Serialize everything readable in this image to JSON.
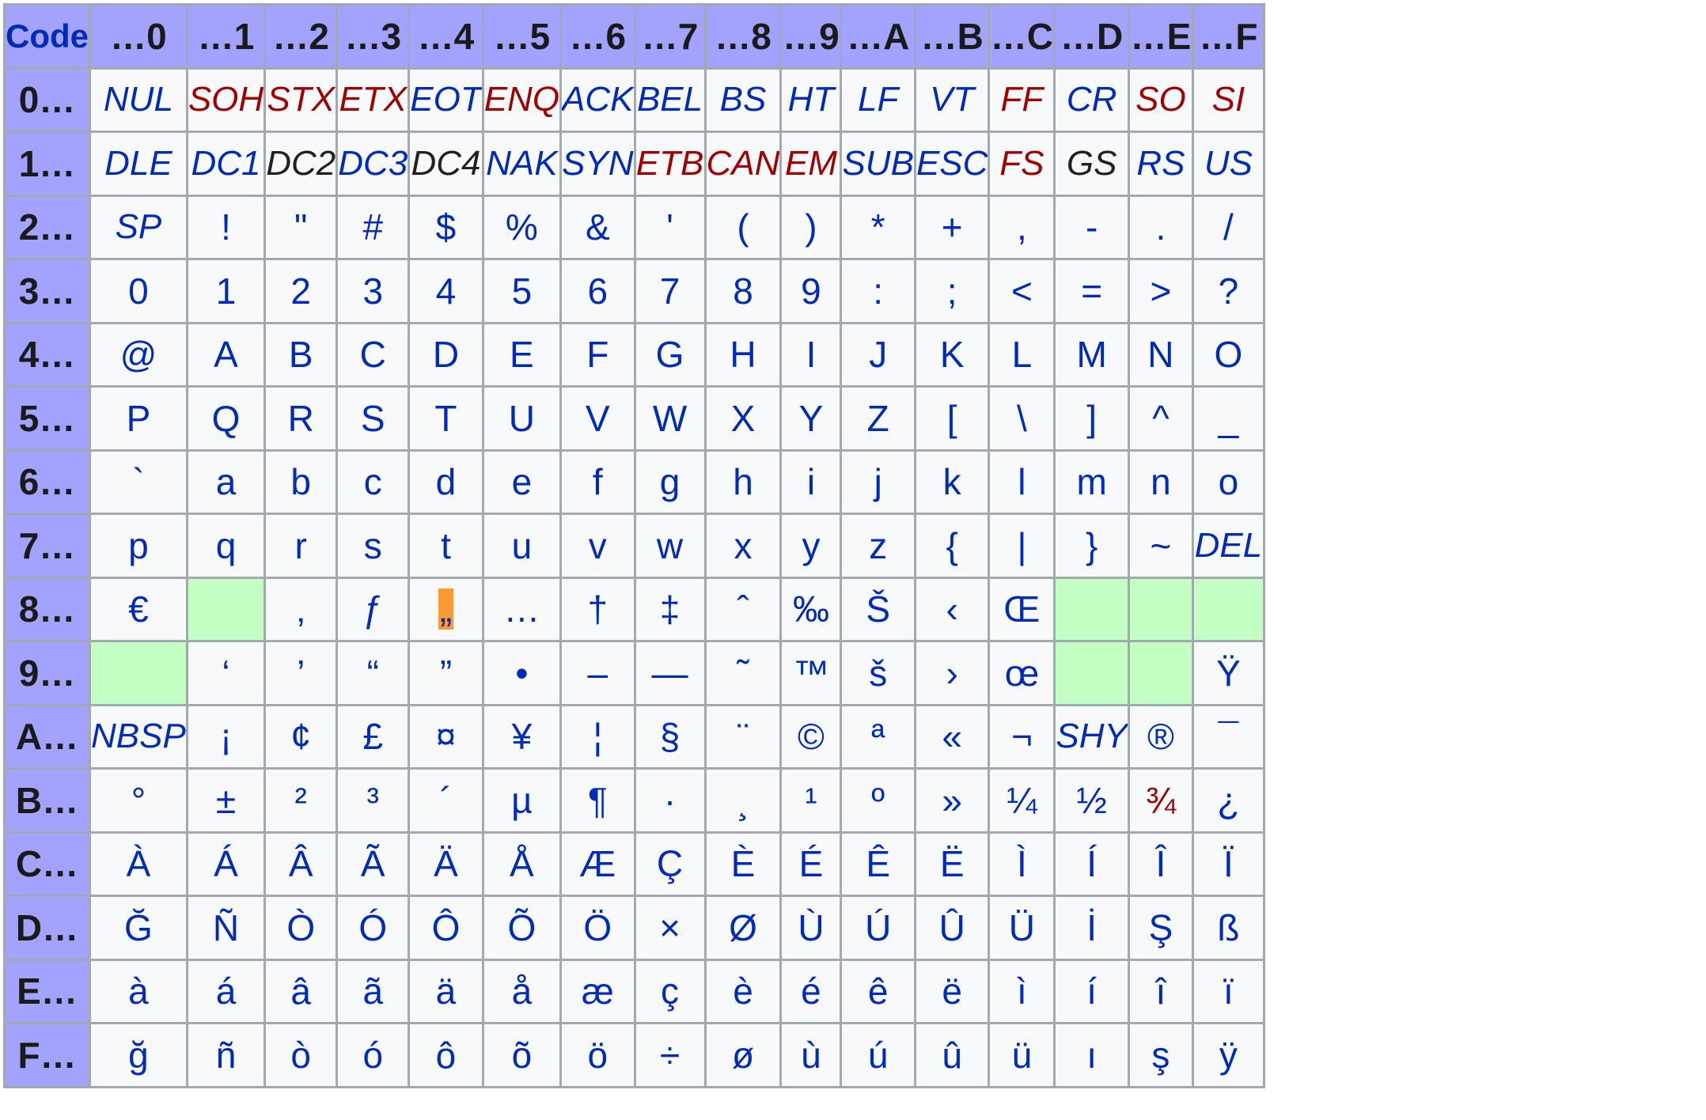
{
  "table": {
    "corner": "Code",
    "columns": [
      "…0",
      "…1",
      "…2",
      "…3",
      "…4",
      "…5",
      "…6",
      "…7",
      "…8",
      "…9",
      "…A",
      "…B",
      "…C",
      "…D",
      "…E",
      "…F"
    ],
    "rows": [
      {
        "label": "0…",
        "cells": [
          {
            "t": "NUL",
            "k": "blue",
            "ctrl": true
          },
          {
            "t": "SOH",
            "k": "red",
            "ctrl": true
          },
          {
            "t": "STX",
            "k": "red",
            "ctrl": true
          },
          {
            "t": "ETX",
            "k": "red",
            "ctrl": true
          },
          {
            "t": "EOT",
            "k": "blue",
            "ctrl": true
          },
          {
            "t": "ENQ",
            "k": "red",
            "ctrl": true
          },
          {
            "t": "ACK",
            "k": "blue",
            "ctrl": true
          },
          {
            "t": "BEL",
            "k": "blue",
            "ctrl": true
          },
          {
            "t": "BS",
            "k": "blue",
            "ctrl": true
          },
          {
            "t": "HT",
            "k": "blue",
            "ctrl": true
          },
          {
            "t": "LF",
            "k": "blue",
            "ctrl": true
          },
          {
            "t": "VT",
            "k": "blue",
            "ctrl": true
          },
          {
            "t": "FF",
            "k": "red",
            "ctrl": true
          },
          {
            "t": "CR",
            "k": "blue",
            "ctrl": true
          },
          {
            "t": "SO",
            "k": "red",
            "ctrl": true
          },
          {
            "t": "SI",
            "k": "red",
            "ctrl": true
          }
        ]
      },
      {
        "label": "1…",
        "cells": [
          {
            "t": "DLE",
            "k": "blue",
            "ctrl": true
          },
          {
            "t": "DC1",
            "k": "blue",
            "ctrl": true
          },
          {
            "t": "DC2",
            "k": "black",
            "ctrl": true
          },
          {
            "t": "DC3",
            "k": "blue",
            "ctrl": true
          },
          {
            "t": "DC4",
            "k": "black",
            "ctrl": true
          },
          {
            "t": "NAK",
            "k": "blue",
            "ctrl": true
          },
          {
            "t": "SYN",
            "k": "blue",
            "ctrl": true
          },
          {
            "t": "ETB",
            "k": "red",
            "ctrl": true
          },
          {
            "t": "CAN",
            "k": "red",
            "ctrl": true
          },
          {
            "t": "EM",
            "k": "red",
            "ctrl": true
          },
          {
            "t": "SUB",
            "k": "blue",
            "ctrl": true
          },
          {
            "t": "ESC",
            "k": "blue",
            "ctrl": true
          },
          {
            "t": "FS",
            "k": "red",
            "ctrl": true
          },
          {
            "t": "GS",
            "k": "black",
            "ctrl": true
          },
          {
            "t": "RS",
            "k": "blue",
            "ctrl": true
          },
          {
            "t": "US",
            "k": "blue",
            "ctrl": true
          }
        ]
      },
      {
        "label": "2…",
        "cells": [
          {
            "t": "SP",
            "k": "blue",
            "ctrl": true
          },
          {
            "t": "!"
          },
          {
            "t": "\""
          },
          {
            "t": "#"
          },
          {
            "t": "$"
          },
          {
            "t": "%"
          },
          {
            "t": "&"
          },
          {
            "t": "'"
          },
          {
            "t": "("
          },
          {
            "t": ")"
          },
          {
            "t": "*"
          },
          {
            "t": "+"
          },
          {
            "t": ","
          },
          {
            "t": "-"
          },
          {
            "t": "."
          },
          {
            "t": "/"
          }
        ]
      },
      {
        "label": "3…",
        "cells": [
          {
            "t": "0"
          },
          {
            "t": "1"
          },
          {
            "t": "2"
          },
          {
            "t": "3"
          },
          {
            "t": "4"
          },
          {
            "t": "5"
          },
          {
            "t": "6"
          },
          {
            "t": "7"
          },
          {
            "t": "8"
          },
          {
            "t": "9"
          },
          {
            "t": ":"
          },
          {
            "t": ";"
          },
          {
            "t": "<"
          },
          {
            "t": "="
          },
          {
            "t": ">"
          },
          {
            "t": "?"
          }
        ]
      },
      {
        "label": "4…",
        "cells": [
          {
            "t": "@"
          },
          {
            "t": "A"
          },
          {
            "t": "B"
          },
          {
            "t": "C"
          },
          {
            "t": "D"
          },
          {
            "t": "E"
          },
          {
            "t": "F"
          },
          {
            "t": "G"
          },
          {
            "t": "H"
          },
          {
            "t": "I"
          },
          {
            "t": "J"
          },
          {
            "t": "K"
          },
          {
            "t": "L"
          },
          {
            "t": "M"
          },
          {
            "t": "N"
          },
          {
            "t": "O"
          }
        ]
      },
      {
        "label": "5…",
        "cells": [
          {
            "t": "P"
          },
          {
            "t": "Q"
          },
          {
            "t": "R"
          },
          {
            "t": "S"
          },
          {
            "t": "T"
          },
          {
            "t": "U"
          },
          {
            "t": "V"
          },
          {
            "t": "W"
          },
          {
            "t": "X"
          },
          {
            "t": "Y"
          },
          {
            "t": "Z"
          },
          {
            "t": "["
          },
          {
            "t": "\\"
          },
          {
            "t": "]"
          },
          {
            "t": "^"
          },
          {
            "t": "_"
          }
        ]
      },
      {
        "label": "6…",
        "cells": [
          {
            "t": "`"
          },
          {
            "t": "a"
          },
          {
            "t": "b"
          },
          {
            "t": "c"
          },
          {
            "t": "d"
          },
          {
            "t": "e"
          },
          {
            "t": "f"
          },
          {
            "t": "g"
          },
          {
            "t": "h"
          },
          {
            "t": "i"
          },
          {
            "t": "j"
          },
          {
            "t": "k"
          },
          {
            "t": "l"
          },
          {
            "t": "m"
          },
          {
            "t": "n"
          },
          {
            "t": "o"
          }
        ]
      },
      {
        "label": "7…",
        "cells": [
          {
            "t": "p"
          },
          {
            "t": "q"
          },
          {
            "t": "r"
          },
          {
            "t": "s"
          },
          {
            "t": "t"
          },
          {
            "t": "u"
          },
          {
            "t": "v"
          },
          {
            "t": "w"
          },
          {
            "t": "x"
          },
          {
            "t": "y"
          },
          {
            "t": "z"
          },
          {
            "t": "{"
          },
          {
            "t": "|"
          },
          {
            "t": "}"
          },
          {
            "t": "~"
          },
          {
            "t": "DEL",
            "k": "blue",
            "ctrl": true
          }
        ]
      },
      {
        "label": "8…",
        "cells": [
          {
            "t": "€"
          },
          {
            "t": "",
            "k": "undef"
          },
          {
            "t": "‚"
          },
          {
            "t": "ƒ"
          },
          {
            "t": "„",
            "k": "mark"
          },
          {
            "t": "…"
          },
          {
            "t": "†"
          },
          {
            "t": "‡"
          },
          {
            "t": "ˆ"
          },
          {
            "t": "‰"
          },
          {
            "t": "Š"
          },
          {
            "t": "‹"
          },
          {
            "t": "Œ"
          },
          {
            "t": "",
            "k": "undef"
          },
          {
            "t": "",
            "k": "undef"
          },
          {
            "t": "",
            "k": "undef"
          }
        ]
      },
      {
        "label": "9…",
        "cells": [
          {
            "t": "",
            "k": "undef"
          },
          {
            "t": "‘"
          },
          {
            "t": "’"
          },
          {
            "t": "“"
          },
          {
            "t": "”"
          },
          {
            "t": "•"
          },
          {
            "t": "–"
          },
          {
            "t": "—"
          },
          {
            "t": "˜"
          },
          {
            "t": "™"
          },
          {
            "t": "š"
          },
          {
            "t": "›"
          },
          {
            "t": "œ"
          },
          {
            "t": "",
            "k": "undef"
          },
          {
            "t": "",
            "k": "undef"
          },
          {
            "t": "Ÿ"
          }
        ]
      },
      {
        "label": "A…",
        "cells": [
          {
            "t": "NBSP",
            "k": "blue",
            "ctrl": true
          },
          {
            "t": "¡"
          },
          {
            "t": "¢"
          },
          {
            "t": "£"
          },
          {
            "t": "¤"
          },
          {
            "t": "¥"
          },
          {
            "t": "¦"
          },
          {
            "t": "§"
          },
          {
            "t": "¨"
          },
          {
            "t": "©"
          },
          {
            "t": "ª"
          },
          {
            "t": "«"
          },
          {
            "t": "¬"
          },
          {
            "t": "SHY",
            "k": "blue",
            "ctrl": true
          },
          {
            "t": "®"
          },
          {
            "t": "¯"
          }
        ]
      },
      {
        "label": "B…",
        "cells": [
          {
            "t": "°"
          },
          {
            "t": "±"
          },
          {
            "t": "²"
          },
          {
            "t": "³"
          },
          {
            "t": "´"
          },
          {
            "t": "µ"
          },
          {
            "t": "¶"
          },
          {
            "t": "·"
          },
          {
            "t": "¸"
          },
          {
            "t": "¹"
          },
          {
            "t": "º"
          },
          {
            "t": "»"
          },
          {
            "t": "¼"
          },
          {
            "t": "½"
          },
          {
            "t": "¾",
            "k": "red"
          },
          {
            "t": "¿"
          }
        ]
      },
      {
        "label": "C…",
        "cells": [
          {
            "t": "À"
          },
          {
            "t": "Á"
          },
          {
            "t": "Â"
          },
          {
            "t": "Ã"
          },
          {
            "t": "Ä"
          },
          {
            "t": "Å"
          },
          {
            "t": "Æ"
          },
          {
            "t": "Ç"
          },
          {
            "t": "È"
          },
          {
            "t": "É"
          },
          {
            "t": "Ê"
          },
          {
            "t": "Ë"
          },
          {
            "t": "Ì"
          },
          {
            "t": "Í"
          },
          {
            "t": "Î"
          },
          {
            "t": "Ï"
          }
        ]
      },
      {
        "label": "D…",
        "cells": [
          {
            "t": "Ğ"
          },
          {
            "t": "Ñ"
          },
          {
            "t": "Ò"
          },
          {
            "t": "Ó"
          },
          {
            "t": "Ô"
          },
          {
            "t": "Õ"
          },
          {
            "t": "Ö"
          },
          {
            "t": "×"
          },
          {
            "t": "Ø"
          },
          {
            "t": "Ù"
          },
          {
            "t": "Ú"
          },
          {
            "t": "Û"
          },
          {
            "t": "Ü"
          },
          {
            "t": "İ"
          },
          {
            "t": "Ş"
          },
          {
            "t": "ß"
          }
        ]
      },
      {
        "label": "E…",
        "cells": [
          {
            "t": "à"
          },
          {
            "t": "á"
          },
          {
            "t": "â"
          },
          {
            "t": "ã"
          },
          {
            "t": "ä"
          },
          {
            "t": "å"
          },
          {
            "t": "æ"
          },
          {
            "t": "ç"
          },
          {
            "t": "è"
          },
          {
            "t": "é"
          },
          {
            "t": "ê"
          },
          {
            "t": "ë"
          },
          {
            "t": "ì"
          },
          {
            "t": "í"
          },
          {
            "t": "î"
          },
          {
            "t": "ï"
          }
        ]
      },
      {
        "label": "F…",
        "cells": [
          {
            "t": "ğ"
          },
          {
            "t": "ñ"
          },
          {
            "t": "ò"
          },
          {
            "t": "ó"
          },
          {
            "t": "ô"
          },
          {
            "t": "õ"
          },
          {
            "t": "ö"
          },
          {
            "t": "÷"
          },
          {
            "t": "ø"
          },
          {
            "t": "ù"
          },
          {
            "t": "ú"
          },
          {
            "t": "û"
          },
          {
            "t": "ü"
          },
          {
            "t": "ı"
          },
          {
            "t": "ş"
          },
          {
            "t": "ÿ"
          }
        ]
      }
    ]
  },
  "colors": {
    "header_bg": "#a3a3ff",
    "cell_bg": "#f8f9fa",
    "undefined_bg": "#c4ffc4",
    "highlight_bg": "#ff9933",
    "text_blue": "#002bb8",
    "text_red": "#a00000",
    "text_black": "#202122",
    "border": "#a2a9b1"
  }
}
